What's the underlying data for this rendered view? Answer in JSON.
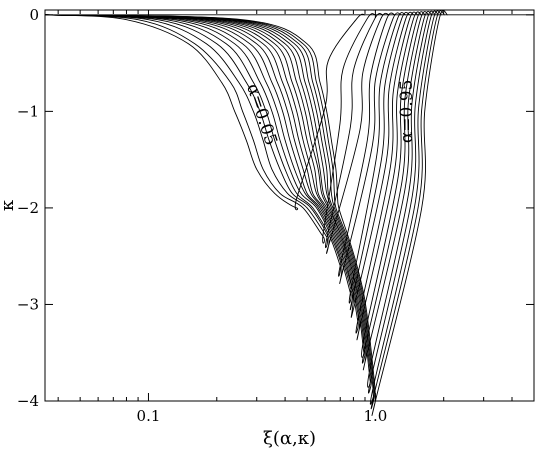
{
  "chart_data": {
    "type": "line",
    "title": "",
    "xlabel": "ξ(α,κ)",
    "ylabel": "κ",
    "xscale": "log",
    "xlim": [
      0.035,
      5.0
    ],
    "ylim": [
      -4,
      0.05
    ],
    "grid": false,
    "x_ticks": [
      {
        "value": 0.1,
        "label": "0.1"
      },
      {
        "value": 1.0,
        "label": "1.0"
      }
    ],
    "y_ticks": [
      {
        "value": 0,
        "label": "0"
      },
      {
        "value": -1,
        "label": "−1"
      },
      {
        "value": -2,
        "label": "−2"
      },
      {
        "value": -3,
        "label": "−3"
      },
      {
        "value": -4,
        "label": "−4"
      }
    ],
    "annotations": [
      {
        "text": "α=0.05",
        "x": 0.3,
        "y": -1.05,
        "rotation": 72
      },
      {
        "text": "α=0.95",
        "x": 1.45,
        "y": -1.0,
        "rotation": -90
      }
    ],
    "series_family": {
      "alpha_values": [
        0.05,
        0.1,
        0.15,
        0.2,
        0.25,
        0.3,
        0.35,
        0.4,
        0.45,
        0.5,
        0.55,
        0.6,
        0.65,
        0.7,
        0.75,
        0.8,
        0.85,
        0.9,
        0.95
      ],
      "x_at_kappa": [
        -0.0001,
        -0.05,
        -0.3,
        -0.7,
        -1.0,
        -1.3,
        -1.6,
        -1.85,
        -2.0,
        -2.3,
        -2.6,
        -2.9,
        -3.2,
        -3.5,
        -3.8,
        -3.95,
        -4.0
      ],
      "left_branch_x": [
        [
          0.035,
          0.08,
          0.15,
          0.21,
          0.24,
          0.27,
          0.3,
          0.36,
          0.45
        ],
        [
          0.035,
          0.09,
          0.16,
          0.23,
          0.26,
          0.29,
          0.32,
          0.38,
          0.48,
          0.59
        ],
        [
          0.035,
          0.1,
          0.18,
          0.25,
          0.29,
          0.32,
          0.35,
          0.41,
          0.5,
          0.61
        ],
        [
          0.035,
          0.11,
          0.2,
          0.27,
          0.31,
          0.34,
          0.38,
          0.43,
          0.52,
          0.62
        ],
        [
          0.035,
          0.12,
          0.22,
          0.29,
          0.33,
          0.36,
          0.4,
          0.45,
          0.53,
          0.63,
          0.7
        ],
        [
          0.035,
          0.13,
          0.24,
          0.31,
          0.35,
          0.38,
          0.42,
          0.47,
          0.55,
          0.64,
          0.71
        ],
        [
          0.035,
          0.14,
          0.26,
          0.33,
          0.37,
          0.4,
          0.44,
          0.49,
          0.56,
          0.65,
          0.72,
          0.78
        ],
        [
          0.035,
          0.15,
          0.28,
          0.35,
          0.39,
          0.42,
          0.46,
          0.5,
          0.57,
          0.66,
          0.73,
          0.79
        ],
        [
          0.035,
          0.16,
          0.3,
          0.37,
          0.41,
          0.44,
          0.48,
          0.52,
          0.58,
          0.67,
          0.74,
          0.8
        ],
        [
          0.035,
          0.17,
          0.32,
          0.39,
          0.43,
          0.46,
          0.5,
          0.53,
          0.59,
          0.68,
          0.75,
          0.8,
          0.84
        ],
        [
          0.035,
          0.18,
          0.34,
          0.41,
          0.45,
          0.48,
          0.52,
          0.55,
          0.6,
          0.69,
          0.76,
          0.81,
          0.85
        ],
        [
          0.035,
          0.19,
          0.36,
          0.43,
          0.47,
          0.5,
          0.54,
          0.56,
          0.61,
          0.7,
          0.77,
          0.82,
          0.86,
          0.89
        ],
        [
          0.035,
          0.2,
          0.38,
          0.45,
          0.49,
          0.52,
          0.56,
          0.58,
          0.62,
          0.71,
          0.78,
          0.83,
          0.87,
          0.9
        ],
        [
          0.035,
          0.21,
          0.4,
          0.47,
          0.51,
          0.54,
          0.57,
          0.59,
          0.63,
          0.71,
          0.78,
          0.84,
          0.88,
          0.91
        ],
        [
          0.035,
          0.22,
          0.42,
          0.49,
          0.53,
          0.56,
          0.59,
          0.61,
          0.64,
          0.72,
          0.79,
          0.85,
          0.89,
          0.92,
          0.95
        ],
        [
          0.035,
          0.23,
          0.44,
          0.51,
          0.55,
          0.58,
          0.61,
          0.62,
          0.65,
          0.73,
          0.8,
          0.86,
          0.9,
          0.93,
          0.96
        ],
        [
          0.035,
          0.24,
          0.46,
          0.53,
          0.57,
          0.6,
          0.63,
          0.64,
          0.66,
          0.74,
          0.81,
          0.87,
          0.91,
          0.94,
          0.97,
          0.98
        ],
        [
          0.035,
          0.25,
          0.48,
          0.55,
          0.59,
          0.62,
          0.65,
          0.66,
          0.67,
          0.75,
          0.82,
          0.88,
          0.92,
          0.95,
          0.98,
          0.99
        ],
        [
          0.035,
          0.26,
          0.5,
          0.57,
          0.61,
          0.64,
          0.67,
          0.68,
          0.69,
          0.76,
          0.83,
          0.89,
          0.93,
          0.96,
          0.99,
          1.0,
          1.0
        ]
      ],
      "minimum": [
        [
          0.45,
          -1.9
        ],
        [
          0.59,
          -2.25
        ],
        [
          0.61,
          -2.32
        ],
        [
          0.62,
          -2.4
        ],
        [
          0.7,
          -2.6
        ],
        [
          0.71,
          -2.7
        ],
        [
          0.78,
          -2.85
        ],
        [
          0.79,
          -2.95
        ],
        [
          0.8,
          -3.05
        ],
        [
          0.84,
          -3.15
        ],
        [
          0.85,
          -3.25
        ],
        [
          0.89,
          -3.35
        ],
        [
          0.9,
          -3.45
        ],
        [
          0.91,
          -3.55
        ],
        [
          0.95,
          -3.65
        ],
        [
          0.96,
          -3.75
        ],
        [
          0.98,
          -3.85
        ],
        [
          0.99,
          -3.92
        ],
        [
          1.0,
          -4.0
        ]
      ],
      "right_return_x": [
        0.62,
        0.72,
        0.8,
        0.88,
        0.95,
        1.0,
        1.05,
        1.1,
        1.15,
        1.2,
        1.25,
        1.3,
        1.35,
        1.4,
        1.45,
        1.5,
        1.55,
        1.6,
        1.65
      ],
      "right_end_x": [
        0.9,
        1.0,
        1.08,
        1.15,
        1.22,
        1.3,
        1.36,
        1.42,
        1.48,
        1.54,
        1.6,
        1.66,
        1.72,
        1.78,
        1.84,
        1.9,
        1.96,
        2.02,
        2.08
      ]
    },
    "baseline": {
      "y": 0
    }
  }
}
